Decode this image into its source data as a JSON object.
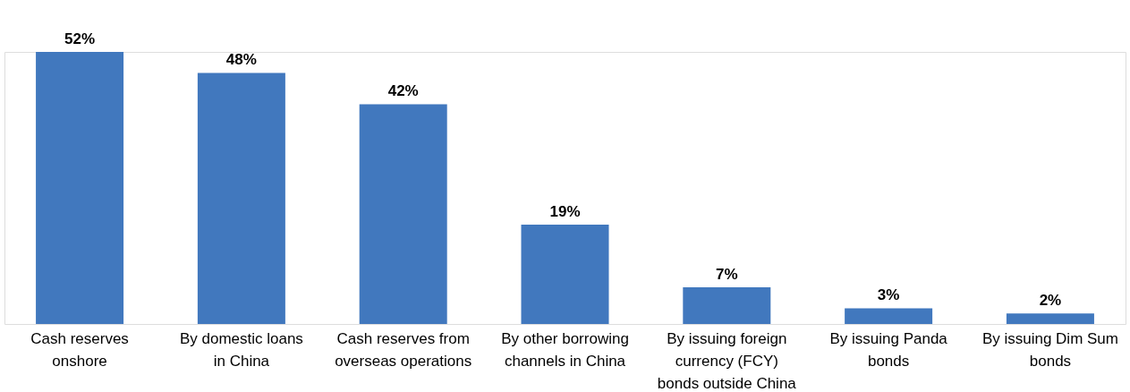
{
  "chart_data": {
    "type": "bar",
    "categories": [
      "Cash reserves onshore",
      "By domestic loans in China",
      "Cash reserves from overseas operations",
      "By other borrowing channels in China",
      "By issuing foreign currency (FCY) bonds outside China",
      "By issuing Panda bonds",
      "By issuing Dim Sum bonds"
    ],
    "values": [
      52,
      48,
      42,
      19,
      7,
      3,
      2
    ],
    "value_labels": [
      "52%",
      "48%",
      "42%",
      "19%",
      "7%",
      "3%",
      "2%"
    ],
    "color": "#4178be"
  }
}
